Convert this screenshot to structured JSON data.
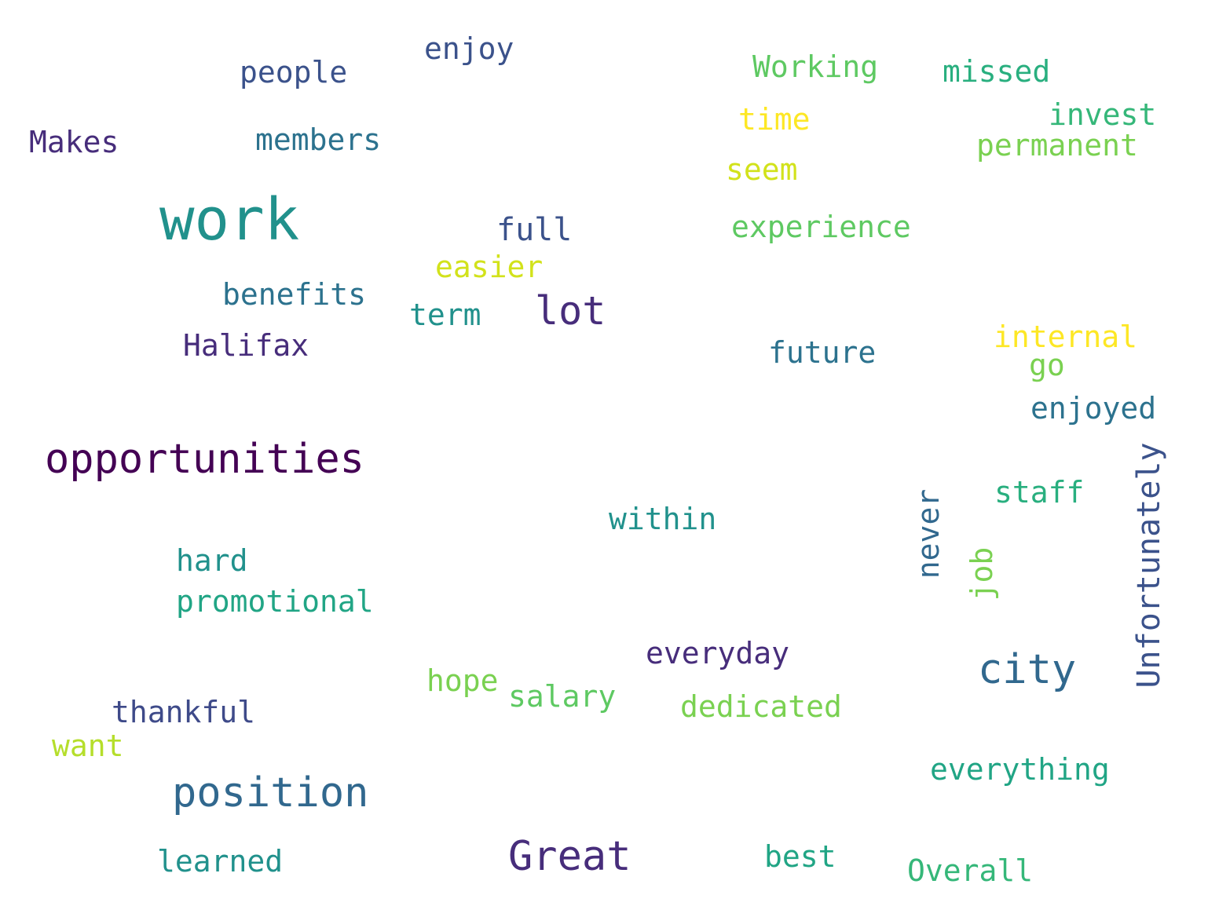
{
  "words": [
    {
      "id": "enjoy",
      "text": "enjoy",
      "color": "#3b528b"
    },
    {
      "id": "people",
      "text": "people",
      "color": "#3b528b"
    },
    {
      "id": "working",
      "text": "Working",
      "color": "#5ec962"
    },
    {
      "id": "missed",
      "text": "missed",
      "color": "#29af7f"
    },
    {
      "id": "time",
      "text": "time",
      "color": "#fde725"
    },
    {
      "id": "invest",
      "text": "invest",
      "color": "#35b779"
    },
    {
      "id": "makes",
      "text": "Makes",
      "color": "#472d7b"
    },
    {
      "id": "members",
      "text": "members",
      "color": "#2c728e"
    },
    {
      "id": "permanent",
      "text": "permanent",
      "color": "#7ad151"
    },
    {
      "id": "seem",
      "text": "seem",
      "color": "#d2e21b"
    },
    {
      "id": "work",
      "text": "work",
      "color": "#21918c"
    },
    {
      "id": "full",
      "text": "full",
      "color": "#3b528b"
    },
    {
      "id": "experience",
      "text": "experience",
      "color": "#5ec962"
    },
    {
      "id": "easier",
      "text": "easier",
      "color": "#d2e21b"
    },
    {
      "id": "benefits",
      "text": "benefits",
      "color": "#2c728e"
    },
    {
      "id": "lot",
      "text": "lot",
      "color": "#472d7b"
    },
    {
      "id": "term",
      "text": "term",
      "color": "#21918c"
    },
    {
      "id": "halifax",
      "text": "Halifax",
      "color": "#472d7b"
    },
    {
      "id": "future",
      "text": "future",
      "color": "#2c728e"
    },
    {
      "id": "internal",
      "text": "internal",
      "color": "#fde725"
    },
    {
      "id": "go",
      "text": "go",
      "color": "#7ad151"
    },
    {
      "id": "enjoyed",
      "text": "enjoyed",
      "color": "#2c728e"
    },
    {
      "id": "opportunities",
      "text": "opportunities",
      "color": "#440154"
    },
    {
      "id": "unfortunately",
      "text": "Unfortunately",
      "color": "#3b528b"
    },
    {
      "id": "staff",
      "text": "staff",
      "color": "#29af7f"
    },
    {
      "id": "never",
      "text": "never",
      "color": "#31688e"
    },
    {
      "id": "job",
      "text": "job",
      "color": "#7ad151"
    },
    {
      "id": "within",
      "text": "within",
      "color": "#21918c"
    },
    {
      "id": "hard",
      "text": "hard",
      "color": "#21918c"
    },
    {
      "id": "promotional",
      "text": "promotional",
      "color": "#21a585"
    },
    {
      "id": "everyday",
      "text": "everyday",
      "color": "#472d7b"
    },
    {
      "id": "city",
      "text": "city",
      "color": "#31688e"
    },
    {
      "id": "hope",
      "text": "hope",
      "color": "#7ad151"
    },
    {
      "id": "salary",
      "text": "salary",
      "color": "#5ec962"
    },
    {
      "id": "dedicated",
      "text": "dedicated",
      "color": "#7ad151"
    },
    {
      "id": "thankful",
      "text": "thankful",
      "color": "#3e4a89"
    },
    {
      "id": "want",
      "text": "want",
      "color": "#b5de2b"
    },
    {
      "id": "everything",
      "text": "everything",
      "color": "#21a585"
    },
    {
      "id": "position",
      "text": "position",
      "color": "#31688e"
    },
    {
      "id": "great",
      "text": "Great",
      "color": "#472d7b"
    },
    {
      "id": "best",
      "text": "best",
      "color": "#21a585"
    },
    {
      "id": "learned",
      "text": "learned",
      "color": "#21918c"
    },
    {
      "id": "overall",
      "text": "Overall",
      "color": "#35b779"
    }
  ]
}
